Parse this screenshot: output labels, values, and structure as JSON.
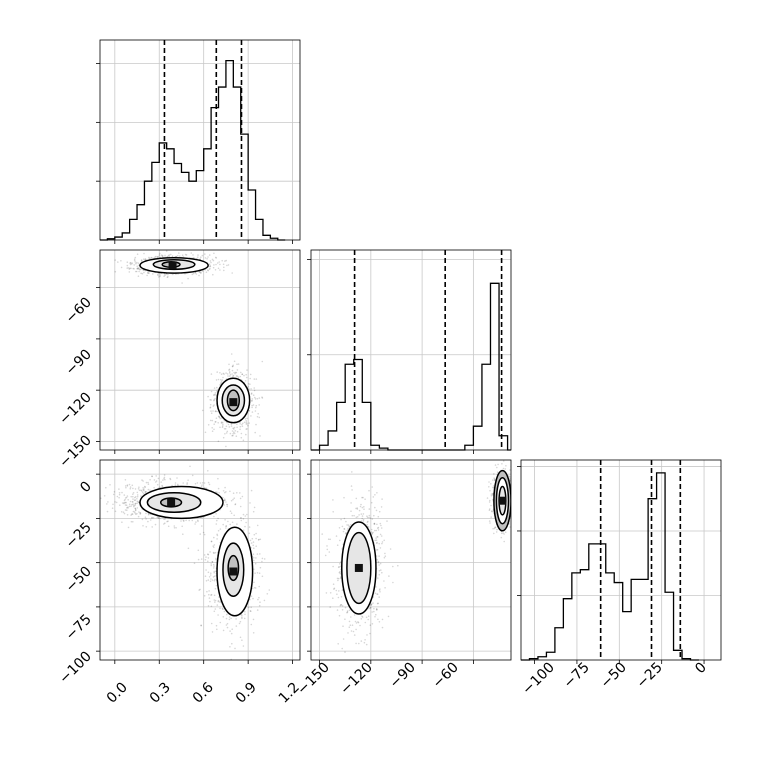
{
  "chart_data": [
    {
      "panel": "hist-x",
      "type": "histogram",
      "variable": "x",
      "xlim": [
        -0.1,
        1.25
      ],
      "ylim": [
        0,
        3.4
      ],
      "bins_start": -0.1,
      "bin_width": 0.05,
      "counts": [
        0,
        0.02,
        0.05,
        0.12,
        0.35,
        0.6,
        1.0,
        1.32,
        1.65,
        1.55,
        1.3,
        1.15,
        1.0,
        1.18,
        1.55,
        2.25,
        2.6,
        3.05,
        2.6,
        1.8,
        0.85,
        0.35,
        0.08,
        0.03,
        0
      ],
      "quantiles": [
        0.335,
        0.685,
        0.855
      ],
      "grid": true
    },
    {
      "panel": "hist-y",
      "type": "histogram",
      "variable": "y",
      "xlim": [
        -155,
        -38
      ],
      "ylim": [
        0,
        2.1
      ],
      "bins_start": -155,
      "bin_width": 5,
      "counts": [
        0,
        0.05,
        0.2,
        0.5,
        0.9,
        0.95,
        0.5,
        0.05,
        0.02,
        0,
        0,
        0,
        0,
        0,
        0,
        0,
        0,
        0,
        0.05,
        0.25,
        0.9,
        1.75,
        0.15,
        0
      ],
      "quantiles": [
        -129.5,
        -76.5,
        -43.5
      ],
      "grid": true
    },
    {
      "panel": "hist-z",
      "type": "histogram",
      "variable": "z",
      "xlim": [
        -108,
        10
      ],
      "ylim": [
        0,
        3.1
      ],
      "bins_start": -108,
      "bin_width": 5,
      "counts": [
        0,
        0.02,
        0.05,
        0.12,
        0.5,
        0.95,
        1.35,
        1.4,
        1.8,
        1.8,
        1.35,
        1.2,
        0.75,
        1.25,
        1.25,
        2.5,
        2.9,
        1.05,
        0.15,
        0.02,
        0
      ],
      "quantiles": [
        -61,
        -31,
        -14
      ],
      "grid": true
    },
    {
      "panel": "joint-x-y",
      "type": "scatter-density",
      "xlim": [
        -0.1,
        1.25
      ],
      "ylim": [
        -155,
        -38
      ],
      "clusters": [
        {
          "x": 0.39,
          "y": -47,
          "sx": 0.11,
          "sy": 2.2,
          "n": 900
        },
        {
          "x": 0.8,
          "y": -127,
          "sx": 0.055,
          "sy": 7,
          "n": 700
        }
      ],
      "contours": [
        {
          "x": 0.4,
          "y": -47,
          "rx": 0.23,
          "ry": 4.5
        },
        {
          "x": 0.4,
          "y": -46.5,
          "rx": 0.14,
          "ry": 2.8
        },
        {
          "x": 0.38,
          "y": -46.5,
          "rx": 0.06,
          "ry": 1.6
        },
        {
          "x": 0.8,
          "y": -126,
          "rx": 0.11,
          "ry": 13
        },
        {
          "x": 0.8,
          "y": -126,
          "rx": 0.075,
          "ry": 9
        },
        {
          "x": 0.8,
          "y": -126,
          "rx": 0.04,
          "ry": 6
        }
      ]
    },
    {
      "panel": "joint-x-z",
      "type": "scatter-density",
      "xlim": [
        -0.1,
        1.25
      ],
      "ylim": [
        -105,
        8
      ],
      "clusters": [
        {
          "x": 0.38,
          "y": -16,
          "sx": 0.15,
          "sy": 4.5,
          "n": 900
        },
        {
          "x": 0.8,
          "y": -55,
          "sx": 0.07,
          "sy": 12,
          "n": 700
        }
      ],
      "contours": [
        {
          "x": 0.45,
          "y": -16,
          "rx": 0.28,
          "ry": 9
        },
        {
          "x": 0.4,
          "y": -16,
          "rx": 0.18,
          "ry": 5.5
        },
        {
          "x": 0.38,
          "y": -16,
          "rx": 0.07,
          "ry": 2.5
        },
        {
          "x": 0.81,
          "y": -55,
          "rx": 0.12,
          "ry": 25
        },
        {
          "x": 0.8,
          "y": -54,
          "rx": 0.07,
          "ry": 15
        },
        {
          "x": 0.8,
          "y": -53,
          "rx": 0.035,
          "ry": 7
        }
      ]
    },
    {
      "panel": "joint-y-z",
      "type": "scatter-density",
      "xlim": [
        -155,
        -38
      ],
      "ylim": [
        -105,
        8
      ],
      "clusters": [
        {
          "x": -127,
          "y": -53,
          "sx": 5.5,
          "sy": 14,
          "n": 800
        },
        {
          "x": -43,
          "y": -15,
          "sx": 2.5,
          "sy": 6,
          "n": 600
        }
      ],
      "contours": [
        {
          "x": -127,
          "y": -53,
          "rx": 10,
          "ry": 26
        },
        {
          "x": -127,
          "y": -53,
          "rx": 7,
          "ry": 20
        },
        {
          "x": -43,
          "y": -15,
          "rx": 5,
          "ry": 17
        },
        {
          "x": -43,
          "y": -15,
          "rx": 3.5,
          "ry": 13
        },
        {
          "x": -43,
          "y": -15,
          "rx": 2,
          "ry": 8
        }
      ]
    }
  ],
  "tick_labels": {
    "x_axis": [
      "0.0",
      "0.3",
      "0.6",
      "0.9",
      "1.2"
    ],
    "y_axis": [
      "−150",
      "−120",
      "−90",
      "−60"
    ],
    "z_axis": [
      "−100",
      "−75",
      "−50",
      "−25",
      "0"
    ]
  }
}
